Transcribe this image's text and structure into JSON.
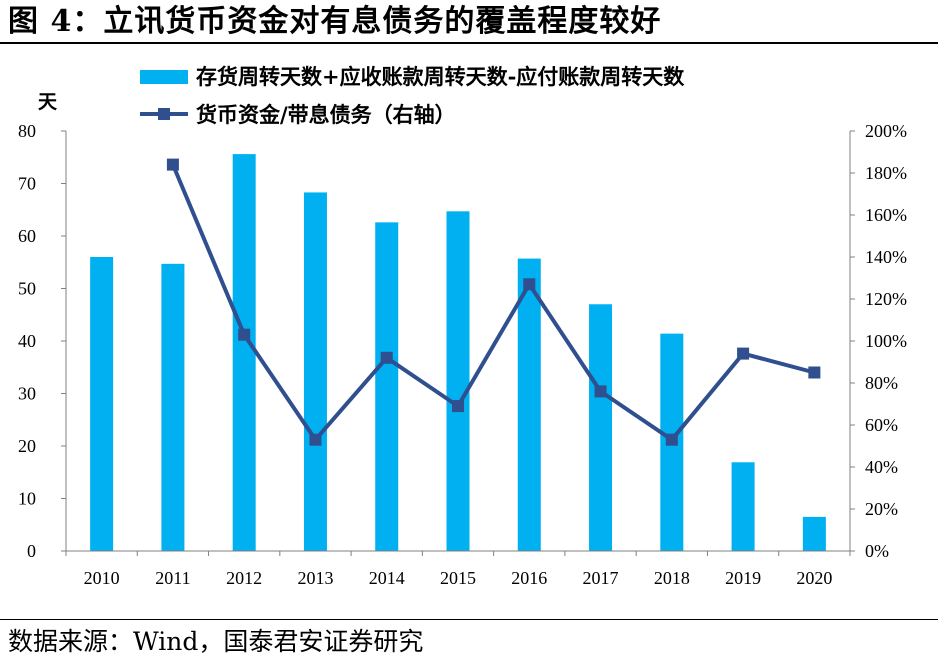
{
  "title": "图 4：立讯货币资金对有息债务的覆盖程度较好",
  "source": "数据来源：Wind，国泰君安证券研究",
  "colors": {
    "bar": "#00B0F0",
    "line": "#2F4F8F",
    "axis": "#808080"
  },
  "chart_data": {
    "type": "bar+line",
    "categories": [
      "2010",
      "2011",
      "2012",
      "2013",
      "2014",
      "2015",
      "2016",
      "2017",
      "2018",
      "2019",
      "2020"
    ],
    "left_axis": {
      "unit": "天",
      "ylim": [
        0,
        80
      ],
      "ticks": [
        "0",
        "10",
        "20",
        "30",
        "40",
        "50",
        "60",
        "70",
        "80"
      ]
    },
    "right_axis": {
      "ylim": [
        0,
        200
      ],
      "ticks": [
        "0%",
        "20%",
        "40%",
        "60%",
        "80%",
        "100%",
        "120%",
        "140%",
        "160%",
        "180%",
        "200%"
      ]
    },
    "series": [
      {
        "name": "存货周转天数+应收账款周转天数-应付账款周转天数",
        "type": "bar",
        "axis": "left",
        "values": [
          56,
          54.7,
          75.6,
          68.3,
          62.6,
          64.7,
          55.7,
          47,
          41.4,
          16.9,
          6.5
        ]
      },
      {
        "name": "货币资金/带息债务（右轴）",
        "type": "line",
        "axis": "right",
        "values": [
          null,
          184,
          103,
          53,
          92,
          69,
          127,
          76,
          53,
          94,
          85
        ]
      }
    ],
    "grid": false,
    "legend_position": "top"
  }
}
